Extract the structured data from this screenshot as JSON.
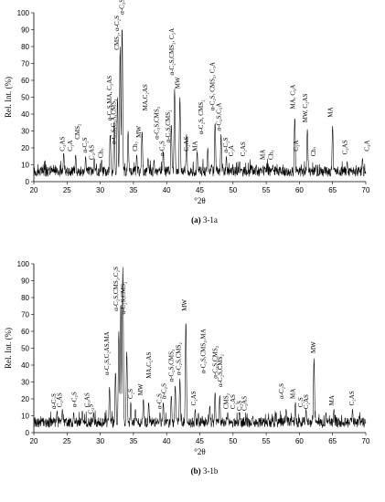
{
  "chart_data": [
    {
      "type": "line",
      "ylabel": "Rel. Int. (%)",
      "xlabel": "°2θ",
      "caption_letter": "(a)",
      "caption_text": "3-1a",
      "xlim": [
        20,
        70
      ],
      "ylim": [
        0,
        100
      ],
      "x_ticks": [
        "20",
        "25",
        "30",
        "35",
        "40",
        "45",
        "50",
        "55",
        "60",
        "65",
        "70"
      ],
      "y_ticks": [
        "0",
        "10",
        "20",
        "30",
        "40",
        "50",
        "60",
        "70",
        "80",
        "90",
        "100"
      ],
      "series": [
        {
          "peaks": [
            [
              24.5,
              17
            ],
            [
              26.3,
              16
            ],
            [
              27.8,
              15
            ],
            [
              29.1,
              14
            ],
            [
              30.2,
              13
            ],
            [
              31.5,
              28
            ],
            [
              32.1,
              36
            ],
            [
              32.6,
              50
            ],
            [
              33.0,
              80
            ],
            [
              33.3,
              92
            ],
            [
              34.2,
              30
            ],
            [
              35.5,
              16
            ],
            [
              36.3,
              30
            ],
            [
              37.2,
              14
            ],
            [
              38.1,
              13
            ],
            [
              39.5,
              18
            ],
            [
              40.7,
              34
            ],
            [
              41.2,
              55
            ],
            [
              42.0,
              50
            ],
            [
              43.0,
              28
            ],
            [
              44.6,
              18
            ],
            [
              46.2,
              20
            ],
            [
              47.3,
              35
            ],
            [
              48.2,
              28
            ],
            [
              49.0,
              15
            ],
            [
              51.0,
              12
            ],
            [
              53.5,
              10
            ],
            [
              56.0,
              10
            ],
            [
              59.3,
              38
            ],
            [
              61.2,
              31
            ],
            [
              62.5,
              10
            ],
            [
              65.0,
              33
            ],
            [
              67.2,
              12
            ],
            [
              69.5,
              14
            ]
          ]
        }
      ],
      "annotations": [
        {
          "x": 24.6,
          "y": 18,
          "text": "C₂AS"
        },
        {
          "x": 25.8,
          "y": 18,
          "text": "C₃A"
        },
        {
          "x": 26.9,
          "y": 25,
          "text": "CMS₂"
        },
        {
          "x": 28.0,
          "y": 17,
          "text": "α-C₂S"
        },
        {
          "x": 29.0,
          "y": 13,
          "text": "C₂AS"
        },
        {
          "x": 30.4,
          "y": 14,
          "text": "Ch₇"
        },
        {
          "x": 31.7,
          "y": 36,
          "text": "α-C₂S,MA, C₃AS"
        },
        {
          "x": 32.3,
          "y": 22,
          "text": "α-C₂S,C₃A,CMS₂"
        },
        {
          "x": 32.8,
          "y": 78,
          "text": "CMS₂, α-C₂S"
        },
        {
          "x": 33.6,
          "y": 99,
          "text": "α-C₂S, CMS₂"
        },
        {
          "x": 35.6,
          "y": 18,
          "text": "Ch₇"
        },
        {
          "x": 36.1,
          "y": 26,
          "text": "MW"
        },
        {
          "x": 37.1,
          "y": 42,
          "text": "MA,C₂AS"
        },
        {
          "x": 38.8,
          "y": 25,
          "text": "α-C₂S,CMS₂"
        },
        {
          "x": 39.6,
          "y": 15,
          "text": "α-C₂S"
        },
        {
          "x": 40.5,
          "y": 23,
          "text": "α-C₂S,CMS₂"
        },
        {
          "x": 41.1,
          "y": 63,
          "text": "α-C₂S,CMS₂, C₃A"
        },
        {
          "x": 42.0,
          "y": 55,
          "text": "MW"
        },
        {
          "x": 43.3,
          "y": 18,
          "text": "C₂AS"
        },
        {
          "x": 44.6,
          "y": 18,
          "text": "MA"
        },
        {
          "x": 45.5,
          "y": 28,
          "text": "α-C₂S, CMS₂"
        },
        {
          "x": 47.2,
          "y": 42,
          "text": "α-C₂S, CMS₂, C₃A"
        },
        {
          "x": 48.2,
          "y": 30,
          "text": "α-C₂S,C₃A"
        },
        {
          "x": 49.2,
          "y": 17,
          "text": "α-C₂S"
        },
        {
          "x": 50.0,
          "y": 15,
          "text": "C₃A"
        },
        {
          "x": 51.8,
          "y": 15,
          "text": "C₂AS"
        },
        {
          "x": 54.8,
          "y": 13,
          "text": "MA"
        },
        {
          "x": 56.0,
          "y": 13,
          "text": "Ch₇"
        },
        {
          "x": 59.3,
          "y": 43,
          "text": "MA, C₃A"
        },
        {
          "x": 59.8,
          "y": 18,
          "text": "C₃A"
        },
        {
          "x": 61.2,
          "y": 35,
          "text": "MW, C₂AS"
        },
        {
          "x": 62.4,
          "y": 15,
          "text": "Ch₇"
        },
        {
          "x": 65.0,
          "y": 38,
          "text": "MA"
        },
        {
          "x": 67.2,
          "y": 16,
          "text": "C₂AS"
        },
        {
          "x": 70.5,
          "y": 18,
          "text": "C₃A"
        }
      ]
    },
    {
      "type": "line",
      "ylabel": "Rel. Int. (%)",
      "xlabel": "°2θ",
      "caption_letter": "(b)",
      "caption_text": "3-1b",
      "xlim": [
        20,
        70
      ],
      "ylim": [
        0,
        100
      ],
      "x_ticks": [
        "20",
        "25",
        "30",
        "35",
        "40",
        "45",
        "50",
        "55",
        "60",
        "65",
        "70"
      ],
      "y_ticks": [
        "0",
        "10",
        "20",
        "30",
        "40",
        "50",
        "60",
        "70",
        "80",
        "90",
        "100"
      ],
      "series": [
        {
          "peaks": [
            [
              23.5,
              13
            ],
            [
              24.3,
              14
            ],
            [
              26.0,
              12
            ],
            [
              27.3,
              13
            ],
            [
              29.0,
              12
            ],
            [
              31.4,
              27
            ],
            [
              32.3,
              36
            ],
            [
              32.8,
              60
            ],
            [
              33.1,
              77
            ],
            [
              33.4,
              98
            ],
            [
              34.0,
              48
            ],
            [
              34.6,
              18
            ],
            [
              35.3,
              14
            ],
            [
              36.5,
              20
            ],
            [
              37.3,
              18
            ],
            [
              39.0,
              12
            ],
            [
              39.5,
              18
            ],
            [
              40.7,
              22
            ],
            [
              41.3,
              28
            ],
            [
              42.0,
              32
            ],
            [
              42.9,
              66
            ],
            [
              44.3,
              14
            ],
            [
              46.5,
              16
            ],
            [
              47.3,
              24
            ],
            [
              48.0,
              22
            ],
            [
              49.2,
              12
            ],
            [
              51.0,
              12
            ],
            [
              53.0,
              10
            ],
            [
              56.5,
              12
            ],
            [
              58.0,
              14
            ],
            [
              59.4,
              18
            ],
            [
              61.0,
              14
            ],
            [
              62.2,
              44
            ],
            [
              64.0,
              12
            ],
            [
              65.2,
              14
            ],
            [
              68.0,
              14
            ],
            [
              69.0,
              10
            ]
          ]
        }
      ],
      "annotations": [
        {
          "x": 23.3,
          "y": 14,
          "text": "α-C₂S"
        },
        {
          "x": 24.2,
          "y": 15,
          "text": "C₂AS"
        },
        {
          "x": 26.4,
          "y": 15,
          "text": "α-C₂S"
        },
        {
          "x": 28.3,
          "y": 15,
          "text": "C₃AS"
        },
        {
          "x": 28.9,
          "y": 11,
          "text": "C₂S"
        },
        {
          "x": 31.3,
          "y": 34,
          "text": "α-C₂S,C₂AS,MA"
        },
        {
          "x": 32.7,
          "y": 72,
          "text": "α-C₂S,CMS₂,C₂S"
        },
        {
          "x": 33.8,
          "y": 70,
          "text": "α-C₂S,CMS₂"
        },
        {
          "x": 34.9,
          "y": 20,
          "text": "C₂S"
        },
        {
          "x": 36.4,
          "y": 22,
          "text": "MW"
        },
        {
          "x": 37.6,
          "y": 32,
          "text": "MA,C₂AS"
        },
        {
          "x": 39.2,
          "y": 14,
          "text": "α-C₂S"
        },
        {
          "x": 39.9,
          "y": 20,
          "text": "α-C₂S"
        },
        {
          "x": 41.0,
          "y": 30,
          "text": "α-C₂S,CMS₂"
        },
        {
          "x": 42.1,
          "y": 34,
          "text": "α-C₂S,CMS₂"
        },
        {
          "x": 43.0,
          "y": 72,
          "text": "MW"
        },
        {
          "x": 44.4,
          "y": 16,
          "text": "C₂AS"
        },
        {
          "x": 45.8,
          "y": 35,
          "text": "α-C₂S,CMS₂,MA"
        },
        {
          "x": 47.6,
          "y": 32,
          "text": "α-C₂S,CMS₂"
        },
        {
          "x": 48.4,
          "y": 27,
          "text": "α-C₂S,CMS₂"
        },
        {
          "x": 49.3,
          "y": 14,
          "text": "CMS₂"
        },
        {
          "x": 50.3,
          "y": 14,
          "text": "C₂AS"
        },
        {
          "x": 51.3,
          "y": 13,
          "text": "C₂S"
        },
        {
          "x": 52.0,
          "y": 13,
          "text": "C₃AS"
        },
        {
          "x": 57.6,
          "y": 20,
          "text": "α-C₂S"
        },
        {
          "x": 59.3,
          "y": 20,
          "text": "MA"
        },
        {
          "x": 60.5,
          "y": 15,
          "text": "C₂S"
        },
        {
          "x": 61.3,
          "y": 14,
          "text": "C₂AS"
        },
        {
          "x": 62.4,
          "y": 47,
          "text": "MW"
        },
        {
          "x": 65.2,
          "y": 16,
          "text": "MA"
        },
        {
          "x": 68.2,
          "y": 16,
          "text": "C₂AS"
        }
      ]
    }
  ]
}
